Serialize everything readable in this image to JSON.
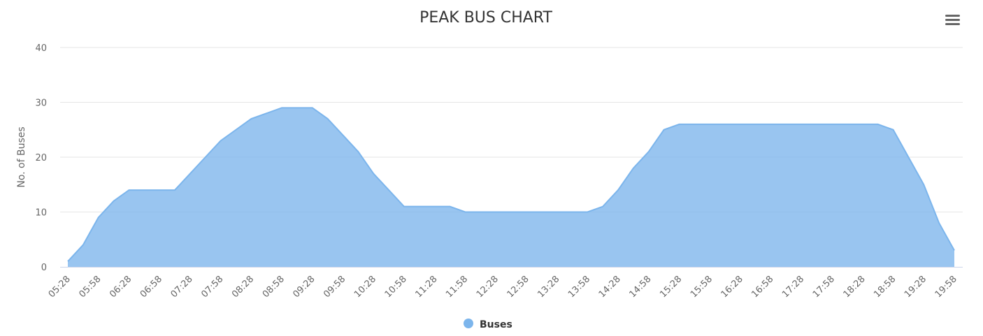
{
  "chart_data": {
    "type": "area",
    "title": "PEAK BUS CHART",
    "xlabel": "",
    "ylabel": "No. of Buses",
    "ylim": [
      0,
      40
    ],
    "yticks": [
      0,
      10,
      20,
      30,
      40
    ],
    "x": [
      "05:28",
      "05:43",
      "05:58",
      "06:13",
      "06:28",
      "06:43",
      "06:58",
      "07:13",
      "07:28",
      "07:43",
      "07:58",
      "08:13",
      "08:28",
      "08:43",
      "08:58",
      "09:13",
      "09:28",
      "09:43",
      "09:58",
      "10:13",
      "10:28",
      "10:43",
      "10:58",
      "11:13",
      "11:28",
      "11:43",
      "11:58",
      "12:13",
      "12:28",
      "12:43",
      "12:58",
      "13:13",
      "13:28",
      "13:43",
      "13:58",
      "14:13",
      "14:28",
      "14:43",
      "14:58",
      "15:13",
      "15:28",
      "15:43",
      "15:58",
      "16:13",
      "16:28",
      "16:43",
      "16:58",
      "17:13",
      "17:28",
      "17:43",
      "17:58",
      "18:13",
      "18:28",
      "18:43",
      "18:58",
      "19:13",
      "19:28",
      "19:43",
      "19:58"
    ],
    "xtick_labels": [
      "05:28",
      "05:58",
      "06:28",
      "06:58",
      "07:28",
      "07:58",
      "08:28",
      "08:58",
      "09:28",
      "09:58",
      "10:28",
      "10:58",
      "11:28",
      "11:58",
      "12:28",
      "12:58",
      "13:28",
      "13:58",
      "14:28",
      "14:58",
      "15:28",
      "15:58",
      "16:28",
      "16:58",
      "17:28",
      "17:58",
      "18:28",
      "18:58",
      "19:28",
      "19:58"
    ],
    "series": [
      {
        "name": "Buses",
        "color": "#7cb5ec",
        "values": [
          1,
          4,
          9,
          12,
          14,
          14,
          14,
          14,
          17,
          20,
          23,
          25,
          27,
          28,
          29,
          29,
          29,
          27,
          24,
          21,
          17,
          14,
          11,
          11,
          11,
          11,
          10,
          10,
          10,
          10,
          10,
          10,
          10,
          10,
          10,
          11,
          14,
          18,
          21,
          25,
          26,
          26,
          26,
          26,
          26,
          26,
          26,
          26,
          26,
          26,
          26,
          26,
          26,
          26,
          25,
          20,
          15,
          8,
          3
        ]
      }
    ],
    "grid": true,
    "legend": "bottom-center"
  },
  "toolbar": {
    "menu_icon": "hamburger-menu-icon"
  }
}
